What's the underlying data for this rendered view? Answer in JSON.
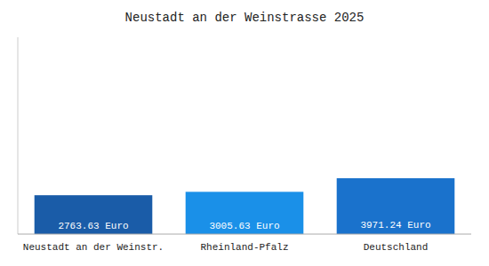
{
  "chart_data": {
    "type": "bar",
    "title": "Neustadt an der Weinstrasse 2025",
    "categories": [
      "Neustadt an der Weinstr.",
      "Rheinland-Pfalz",
      "Deutschland"
    ],
    "values": [
      2763.63,
      3005.63,
      3971.24
    ],
    "value_labels": [
      "2763.63 Euro",
      "3005.63 Euro",
      "3971.24 Euro"
    ],
    "colors": [
      "#1a5ca8",
      "#1a90e8",
      "#1a72cc"
    ],
    "ylim": [
      0,
      14000
    ],
    "data_labels": true,
    "tick_labels": "x"
  }
}
